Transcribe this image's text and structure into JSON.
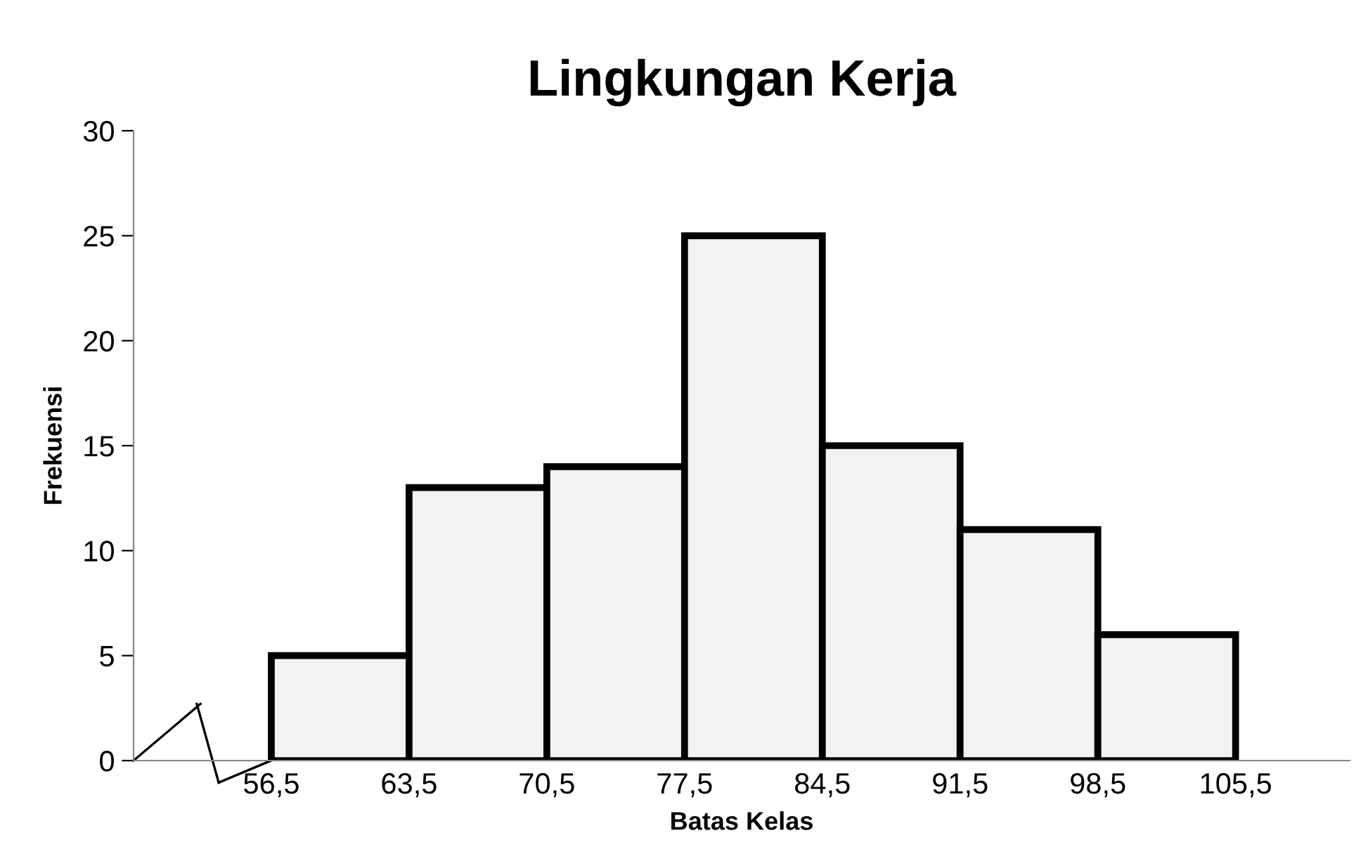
{
  "chart_data": {
    "type": "histogram",
    "title": "Lingkungan Kerja",
    "xlabel": "Batas Kelas",
    "ylabel": "Frekuensi",
    "bins": [
      56.5,
      63.5,
      70.5,
      77.5,
      84.5,
      91.5,
      98.5,
      105.5
    ],
    "values": [
      5,
      13,
      14,
      25,
      15,
      11,
      6
    ],
    "color": "#f2f2f2",
    "xlim": [
      49.5,
      111.3
    ],
    "xticks": [
      {
        "value": 56.5,
        "label": "56,5"
      },
      {
        "value": 63.5,
        "label": "63,5"
      },
      {
        "value": 70.5,
        "label": "70,5"
      },
      {
        "value": 77.5,
        "label": "77,5"
      },
      {
        "value": 84.5,
        "label": "84,5"
      },
      {
        "value": 91.5,
        "label": "91,5"
      },
      {
        "value": 98.5,
        "label": "98,5"
      },
      {
        "value": 105.5,
        "label": "105,5"
      }
    ],
    "ylim": [
      0,
      30
    ],
    "yticks": [
      0,
      5,
      10,
      15,
      20,
      25,
      30
    ],
    "grid": false
  }
}
